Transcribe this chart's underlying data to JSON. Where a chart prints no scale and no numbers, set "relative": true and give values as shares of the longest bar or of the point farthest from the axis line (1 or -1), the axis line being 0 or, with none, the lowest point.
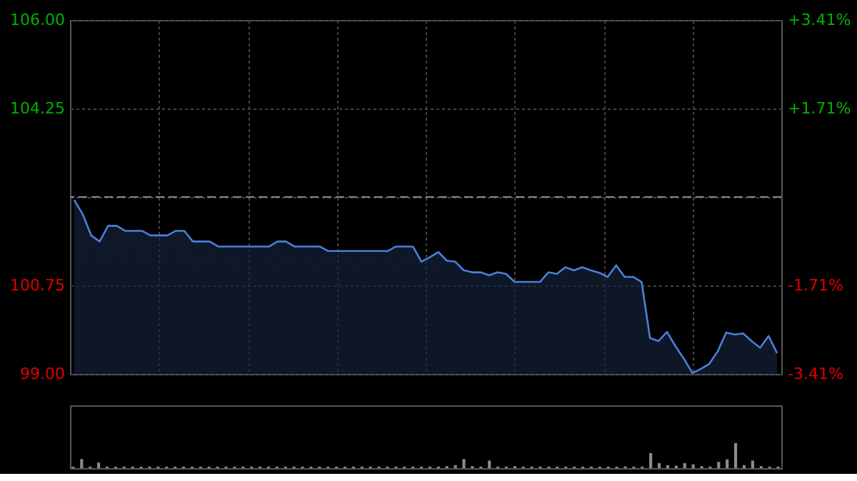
{
  "chart_data": [
    {
      "type": "area",
      "categories": [
        null,
        null,
        null,
        null,
        null,
        null,
        null,
        null,
        null,
        null,
        null,
        null,
        null,
        null,
        null,
        null,
        null,
        null,
        null,
        null,
        null,
        null,
        null,
        null,
        null,
        null,
        null,
        null,
        null,
        null,
        null,
        null,
        null,
        null,
        null,
        null,
        null,
        null,
        null,
        null,
        null,
        null,
        null,
        null,
        null,
        null,
        null,
        null,
        null,
        null,
        null,
        null,
        null,
        null,
        null,
        null,
        null,
        null,
        null,
        null,
        null,
        null,
        null,
        null,
        null,
        null,
        null,
        null,
        null,
        null,
        null,
        null,
        null,
        null,
        null,
        null,
        null,
        null,
        null,
        null,
        null,
        null,
        null,
        null
      ],
      "series": [
        {
          "color": "#4a7fd8",
          "values": [
            102.44,
            102.16,
            101.74,
            101.62,
            101.93,
            101.93,
            101.83,
            101.83,
            101.83,
            101.74,
            101.74,
            101.74,
            101.83,
            101.83,
            101.62,
            101.62,
            101.62,
            101.52,
            101.52,
            101.52,
            101.52,
            101.52,
            101.52,
            101.52,
            101.62,
            101.62,
            101.52,
            101.52,
            101.52,
            101.52,
            101.43,
            101.43,
            101.43,
            101.43,
            101.43,
            101.43,
            101.43,
            101.43,
            101.52,
            101.52,
            101.52,
            101.22,
            101.31,
            101.41,
            101.24,
            101.22,
            101.05,
            101.01,
            101.01,
            100.95,
            101.01,
            100.98,
            100.82,
            100.82,
            100.82,
            100.82,
            101.01,
            100.98,
            101.11,
            101.05,
            101.11,
            101.05,
            101.0,
            100.92,
            101.15,
            100.92,
            100.92,
            100.82,
            99.71,
            99.65,
            99.83,
            99.55,
            99.3,
            99.02,
            99.1,
            99.2,
            99.45,
            99.82,
            99.78,
            99.8,
            99.65,
            99.52,
            99.75,
            99.41
          ]
        }
      ],
      "ylim": [
        99,
        106
      ],
      "yticks": [
        {
          "value": 99,
          "label": "99.00"
        },
        {
          "value": 100.75,
          "label": "100.75"
        },
        {
          "value": 102.5,
          "label": null
        },
        {
          "value": 104.25,
          "label": "104.25"
        },
        {
          "value": 106,
          "label": "106.00"
        }
      ],
      "y2lim": [
        -3.41,
        3.41
      ],
      "y2ticks": [
        {
          "value": -3.41,
          "label": "-3.41%"
        },
        {
          "value": -1.71,
          "label": "-1.71%"
        },
        {
          "value": 1.71,
          "label": "+1.71%"
        },
        {
          "value": 3.41,
          "label": "+3.41%"
        }
      ],
      "ref_lines": [
        {
          "axis": "y",
          "value": 102.5,
          "line_style": "dashed"
        }
      ],
      "grid": true
    },
    {
      "type": "bar",
      "relative": true,
      "color": "#8c8c8c",
      "categories": [
        null,
        null,
        null,
        null,
        null,
        null,
        null,
        null,
        null,
        null,
        null,
        null,
        null,
        null,
        null,
        null,
        null,
        null,
        null,
        null,
        null,
        null,
        null,
        null,
        null,
        null,
        null,
        null,
        null,
        null,
        null,
        null,
        null,
        null,
        null,
        null,
        null,
        null,
        null,
        null,
        null,
        null,
        null,
        null,
        null,
        null,
        null,
        null,
        null,
        null,
        null,
        null,
        null,
        null,
        null,
        null,
        null,
        null,
        null,
        null,
        null,
        null,
        null,
        null,
        null,
        null,
        null,
        null,
        null,
        null,
        null,
        null,
        null,
        null,
        null,
        null,
        null,
        null,
        null,
        null,
        null,
        null,
        null,
        null
      ],
      "values": [
        0.06,
        0.36,
        0.06,
        0.22,
        0.06,
        0.06,
        0.06,
        0.06,
        0.06,
        0.06,
        0.06,
        0.06,
        0.06,
        0.06,
        0.06,
        0.06,
        0.06,
        0.06,
        0.06,
        0.06,
        0.06,
        0.06,
        0.06,
        0.06,
        0.06,
        0.06,
        0.06,
        0.06,
        0.06,
        0.06,
        0.06,
        0.06,
        0.06,
        0.06,
        0.06,
        0.06,
        0.06,
        0.06,
        0.06,
        0.06,
        0.06,
        0.06,
        0.06,
        0.06,
        0.08,
        0.12,
        0.36,
        0.08,
        0.06,
        0.3,
        0.06,
        0.06,
        0.08,
        0.06,
        0.06,
        0.06,
        0.06,
        0.06,
        0.06,
        0.06,
        0.06,
        0.06,
        0.06,
        0.06,
        0.06,
        0.07,
        0.06,
        0.06,
        0.6,
        0.2,
        0.12,
        0.1,
        0.2,
        0.15,
        0.08,
        0.06,
        0.25,
        0.35,
        1.0,
        0.12,
        0.3,
        0.08,
        0.06,
        0.06
      ]
    }
  ]
}
